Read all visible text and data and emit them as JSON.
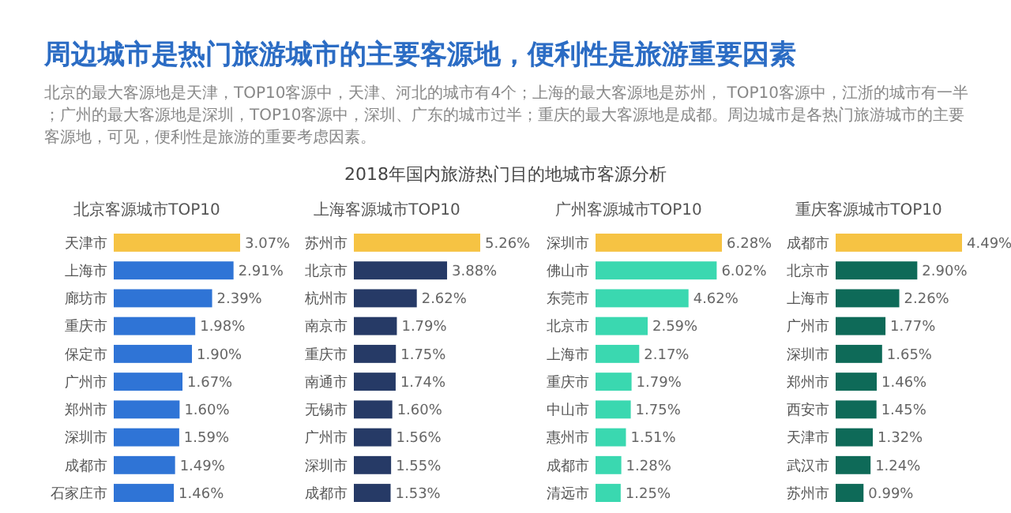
{
  "chart_data": [
    {
      "type": "other",
      "title": "周边城市是热门旅游城市的主要客源地，便利性是旅游重要因素",
      "subtitle": "北京的最大客源地是天津，TOP10客源中，天津、河北的城市有4个；上海的最大客源地是苏州， TOP10客源中，江浙的城市有一半；广州的最大客源地是深圳，TOP10客源中，深圳、广东的城市过半；重庆的最大客源地是成都。周边城市是各热门旅游城市的主要客源地，可见，便利性是旅游的重要考虑因素。",
      "annotations": [
        "2018年国内旅游热门目的地城市客源分析"
      ]
    },
    {
      "type": "bar",
      "orientation": "horizontal",
      "title": "北京客源城市TOP10",
      "categories": [
        "天津市",
        "上海市",
        "廊坊市",
        "重庆市",
        "保定市",
        "广州市",
        "郑州市",
        "深圳市",
        "成都市",
        "石家庄市"
      ],
      "values": [
        3.07,
        2.91,
        2.39,
        1.98,
        1.9,
        1.67,
        1.6,
        1.59,
        1.49,
        1.46
      ],
      "value_labels": [
        "3.07%",
        "2.91%",
        "2.39%",
        "1.98%",
        "1.90%",
        "1.67%",
        "1.60%",
        "1.59%",
        "1.49%",
        "1.46%"
      ],
      "colors": [
        "#f6c343",
        "#2f74d6",
        "#2f74d6",
        "#2f74d6",
        "#2f74d6",
        "#2f74d6",
        "#2f74d6",
        "#2f74d6",
        "#2f74d6",
        "#2f74d6"
      ]
    },
    {
      "type": "bar",
      "orientation": "horizontal",
      "title": "上海客源城市TOP10",
      "categories": [
        "苏州市",
        "北京市",
        "杭州市",
        "南京市",
        "重庆市",
        "南通市",
        "无锡市",
        "广州市",
        "深圳市",
        "成都市"
      ],
      "values": [
        5.26,
        3.88,
        2.62,
        1.79,
        1.75,
        1.74,
        1.6,
        1.56,
        1.55,
        1.53
      ],
      "value_labels": [
        "5.26%",
        "3.88%",
        "2.62%",
        "1.79%",
        "1.75%",
        "1.74%",
        "1.60%",
        "1.56%",
        "1.55%",
        "1.53%"
      ],
      "colors": [
        "#f6c343",
        "#263a66",
        "#263a66",
        "#263a66",
        "#263a66",
        "#263a66",
        "#263a66",
        "#263a66",
        "#263a66",
        "#263a66"
      ]
    },
    {
      "type": "bar",
      "orientation": "horizontal",
      "title": "广州客源城市TOP10",
      "categories": [
        "深圳市",
        "佛山市",
        "东莞市",
        "北京市",
        "上海市",
        "重庆市",
        "中山市",
        "惠州市",
        "成都市",
        "清远市"
      ],
      "values": [
        6.28,
        6.02,
        4.62,
        2.59,
        2.17,
        1.79,
        1.75,
        1.51,
        1.28,
        1.25
      ],
      "value_labels": [
        "6.28%",
        "6.02%",
        "4.62%",
        "2.59%",
        "2.17%",
        "1.79%",
        "1.75%",
        "1.51%",
        "1.28%",
        "1.25%"
      ],
      "colors": [
        "#f6c343",
        "#3ad8b0",
        "#3ad8b0",
        "#3ad8b0",
        "#3ad8b0",
        "#3ad8b0",
        "#3ad8b0",
        "#3ad8b0",
        "#3ad8b0",
        "#3ad8b0"
      ]
    },
    {
      "type": "bar",
      "orientation": "horizontal",
      "title": "重庆客源城市TOP10",
      "categories": [
        "成都市",
        "北京市",
        "上海市",
        "广州市",
        "深圳市",
        "郑州市",
        "西安市",
        "天津市",
        "武汉市",
        "苏州市"
      ],
      "values": [
        4.49,
        2.9,
        2.26,
        1.77,
        1.65,
        1.46,
        1.45,
        1.32,
        1.24,
        0.99
      ],
      "value_labels": [
        "4.49%",
        "2.90%",
        "2.26%",
        "1.77%",
        "1.65%",
        "1.46%",
        "1.45%",
        "1.32%",
        "1.24%",
        "0.99%"
      ],
      "colors": [
        "#f6c343",
        "#0e6a58",
        "#0e6a58",
        "#0e6a58",
        "#0e6a58",
        "#0e6a58",
        "#0e6a58",
        "#0e6a58",
        "#0e6a58",
        "#0e6a58"
      ]
    }
  ]
}
